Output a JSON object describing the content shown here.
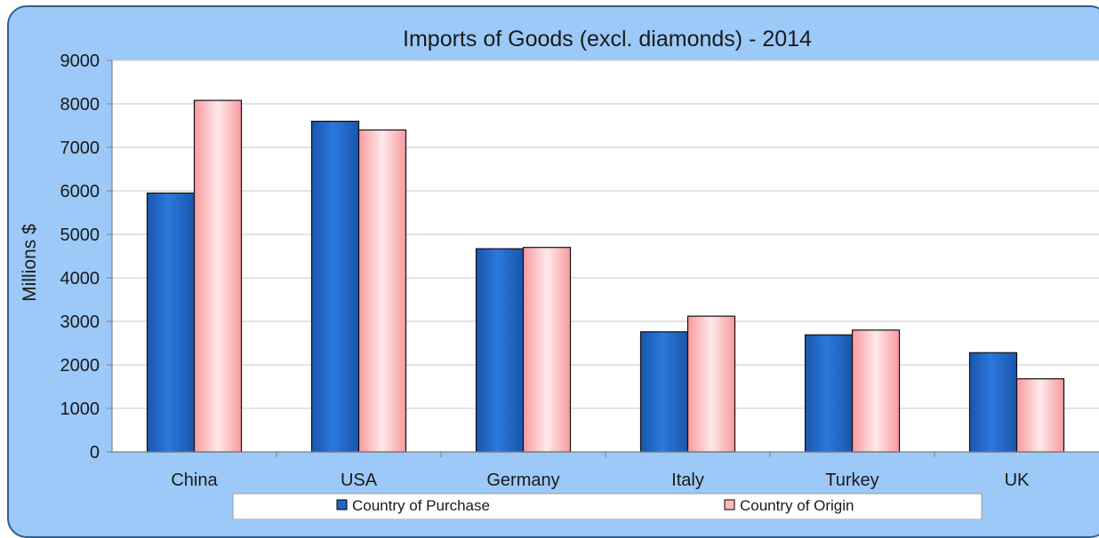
{
  "chart_data": {
    "type": "bar",
    "title": "Imports of Goods (excl. diamonds) - 2014",
    "ylabel": "Millions $",
    "xlabel": "",
    "categories": [
      "China",
      "USA",
      "Germany",
      "Italy",
      "Turkey",
      "UK"
    ],
    "series": [
      {
        "name": "Country of Purchase",
        "values": [
          5950,
          7600,
          4670,
          2760,
          2690,
          2280
        ]
      },
      {
        "name": "Country of Origin",
        "values": [
          8080,
          7400,
          4700,
          3120,
          2800,
          1680
        ]
      }
    ],
    "ylim": [
      0,
      9000
    ],
    "yticks": [
      "0",
      "1000",
      "2000",
      "3000",
      "4000",
      "5000",
      "6000",
      "7000",
      "8000",
      "9000"
    ],
    "grid": true,
    "legend_position": "bottom",
    "colors": {
      "frame_background": "#9cc9f7",
      "plot_background": "#ffffff",
      "purchase": "#2166c7",
      "origin": "#ffb7b9"
    }
  }
}
